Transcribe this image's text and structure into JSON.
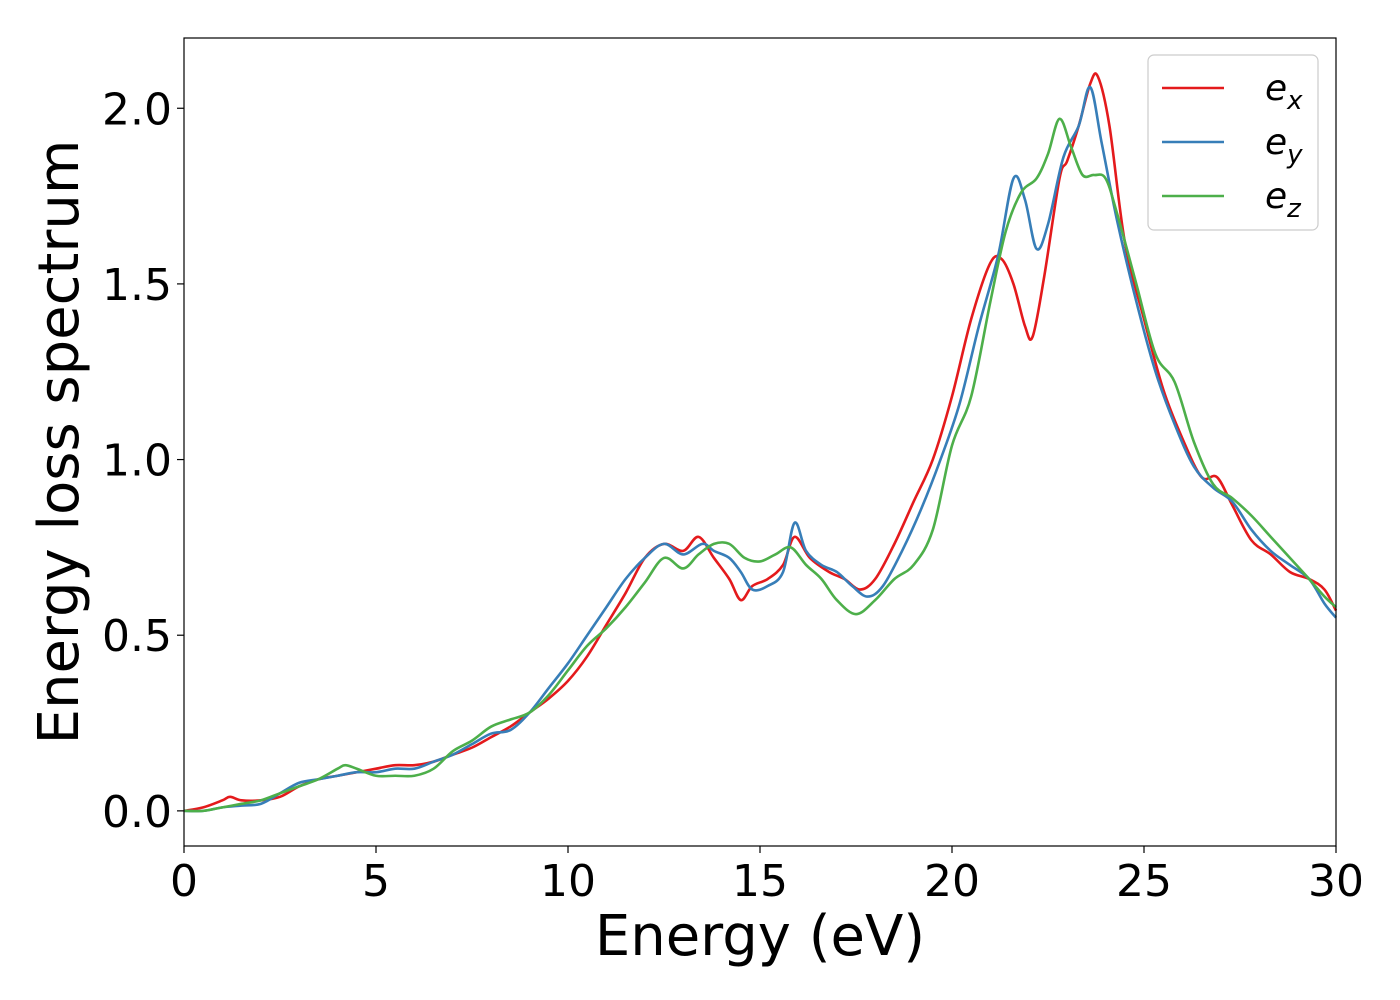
{
  "chart_data": {
    "type": "line",
    "title": "",
    "xlabel": "Energy (eV)",
    "ylabel": "Energy loss spectrum",
    "xlim": [
      0,
      30
    ],
    "ylim": [
      -0.1,
      2.2
    ],
    "xticks": [
      0,
      5,
      10,
      15,
      20,
      25,
      30
    ],
    "xtick_labels": [
      "0",
      "5",
      "10",
      "15",
      "20",
      "25",
      "30"
    ],
    "yticks": [
      0.0,
      0.5,
      1.0,
      1.5,
      2.0
    ],
    "ytick_labels": [
      "0.0",
      "0.5",
      "1.0",
      "1.5",
      "2.0"
    ],
    "grid": false,
    "legend_position": "top-right",
    "series": [
      {
        "name": "e_x",
        "legend_main": "e",
        "legend_sub": "x",
        "color": "#e41a1c",
        "x": [
          0,
          0.5,
          1.0,
          1.2,
          1.5,
          2.0,
          2.5,
          3.0,
          3.5,
          4.0,
          4.5,
          5.0,
          5.5,
          6.0,
          6.5,
          7.0,
          7.5,
          8.0,
          8.5,
          9.0,
          9.5,
          10.0,
          10.5,
          11.0,
          11.5,
          12.0,
          12.5,
          13.0,
          13.4,
          13.8,
          14.2,
          14.5,
          14.8,
          15.2,
          15.6,
          15.9,
          16.3,
          16.8,
          17.2,
          17.6,
          18.0,
          18.5,
          19.0,
          19.5,
          20.0,
          20.5,
          21.0,
          21.3,
          21.6,
          21.9,
          22.1,
          22.4,
          22.8,
          23.0,
          23.3,
          23.6,
          23.8,
          24.1,
          24.5,
          25.0,
          25.5,
          26.0,
          26.5,
          26.9,
          27.3,
          27.8,
          28.3,
          28.8,
          29.3,
          29.7,
          30.0
        ],
        "y": [
          0.0,
          0.01,
          0.03,
          0.04,
          0.03,
          0.03,
          0.04,
          0.07,
          0.09,
          0.1,
          0.11,
          0.12,
          0.13,
          0.13,
          0.14,
          0.16,
          0.18,
          0.21,
          0.24,
          0.28,
          0.32,
          0.37,
          0.44,
          0.53,
          0.62,
          0.72,
          0.76,
          0.74,
          0.78,
          0.72,
          0.66,
          0.6,
          0.64,
          0.66,
          0.7,
          0.78,
          0.72,
          0.68,
          0.66,
          0.63,
          0.66,
          0.76,
          0.88,
          1.0,
          1.18,
          1.4,
          1.56,
          1.57,
          1.5,
          1.38,
          1.35,
          1.52,
          1.8,
          1.85,
          1.95,
          2.07,
          2.09,
          1.95,
          1.62,
          1.4,
          1.2,
          1.06,
          0.95,
          0.95,
          0.87,
          0.77,
          0.73,
          0.68,
          0.66,
          0.63,
          0.57
        ]
      },
      {
        "name": "e_y",
        "legend_main": "e",
        "legend_sub": "y",
        "color": "#377eb8",
        "x": [
          0,
          0.5,
          1.0,
          1.5,
          2.0,
          2.5,
          3.0,
          3.5,
          4.0,
          4.5,
          5.0,
          5.5,
          6.0,
          6.5,
          7.0,
          7.5,
          8.0,
          8.5,
          9.0,
          9.5,
          10.0,
          10.5,
          11.0,
          11.5,
          12.0,
          12.5,
          13.0,
          13.5,
          13.8,
          14.2,
          14.5,
          14.8,
          15.2,
          15.6,
          15.9,
          16.2,
          16.6,
          17.0,
          17.4,
          17.8,
          18.2,
          18.7,
          19.2,
          19.7,
          20.2,
          20.7,
          21.2,
          21.6,
          21.9,
          22.2,
          22.5,
          22.9,
          23.3,
          23.6,
          23.9,
          24.3,
          24.8,
          25.3,
          25.8,
          26.3,
          26.8,
          27.3,
          27.8,
          28.3,
          28.8,
          29.3,
          29.7,
          30.0
        ],
        "y": [
          0.0,
          0.0,
          0.01,
          0.015,
          0.02,
          0.05,
          0.08,
          0.09,
          0.1,
          0.11,
          0.11,
          0.12,
          0.12,
          0.14,
          0.16,
          0.19,
          0.22,
          0.23,
          0.28,
          0.35,
          0.42,
          0.5,
          0.58,
          0.66,
          0.72,
          0.76,
          0.73,
          0.76,
          0.74,
          0.72,
          0.68,
          0.63,
          0.64,
          0.68,
          0.82,
          0.74,
          0.7,
          0.68,
          0.64,
          0.61,
          0.64,
          0.74,
          0.86,
          1.0,
          1.16,
          1.38,
          1.58,
          1.8,
          1.74,
          1.6,
          1.67,
          1.86,
          1.95,
          2.06,
          1.9,
          1.68,
          1.45,
          1.25,
          1.1,
          0.98,
          0.92,
          0.88,
          0.8,
          0.74,
          0.7,
          0.66,
          0.59,
          0.55
        ]
      },
      {
        "name": "e_z",
        "legend_main": "e",
        "legend_sub": "z",
        "color": "#4daf4a",
        "x": [
          0,
          0.5,
          1.0,
          1.5,
          2.0,
          2.5,
          3.0,
          3.5,
          4.0,
          4.2,
          4.5,
          5.0,
          5.5,
          6.0,
          6.5,
          7.0,
          7.5,
          8.0,
          8.5,
          9.0,
          9.5,
          10.0,
          10.5,
          11.0,
          11.5,
          12.0,
          12.5,
          13.0,
          13.4,
          13.8,
          14.2,
          14.6,
          15.0,
          15.4,
          15.8,
          16.2,
          16.6,
          17.0,
          17.5,
          18.0,
          18.5,
          19.0,
          19.5,
          20.0,
          20.5,
          21.0,
          21.4,
          21.8,
          22.2,
          22.5,
          22.8,
          23.1,
          23.4,
          23.7,
          24.0,
          24.3,
          24.8,
          25.3,
          25.8,
          26.3,
          26.8,
          27.3,
          27.8,
          28.3,
          28.8,
          29.3,
          29.7,
          30.0
        ],
        "y": [
          0.0,
          0.0,
          0.01,
          0.02,
          0.03,
          0.05,
          0.07,
          0.09,
          0.12,
          0.13,
          0.12,
          0.1,
          0.1,
          0.1,
          0.12,
          0.17,
          0.2,
          0.24,
          0.26,
          0.28,
          0.33,
          0.4,
          0.47,
          0.52,
          0.58,
          0.65,
          0.72,
          0.69,
          0.73,
          0.76,
          0.76,
          0.72,
          0.71,
          0.73,
          0.75,
          0.7,
          0.66,
          0.6,
          0.56,
          0.6,
          0.66,
          0.7,
          0.8,
          1.04,
          1.18,
          1.45,
          1.65,
          1.76,
          1.8,
          1.87,
          1.97,
          1.89,
          1.81,
          1.81,
          1.8,
          1.7,
          1.5,
          1.3,
          1.22,
          1.05,
          0.93,
          0.89,
          0.84,
          0.78,
          0.72,
          0.66,
          0.61,
          0.58
        ]
      }
    ]
  }
}
